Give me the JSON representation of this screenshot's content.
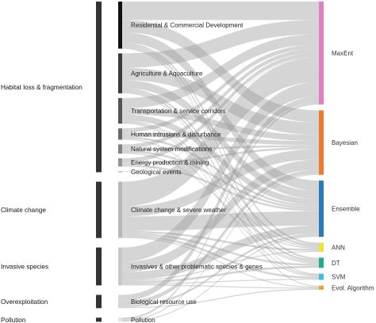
{
  "diagram": {
    "type": "sankey",
    "left_nodes": [
      {
        "key": "habitat",
        "label": "Habitat loss & fragmentation"
      },
      {
        "key": "climate",
        "label": "Climate change"
      },
      {
        "key": "invasive",
        "label": "Invasive species"
      },
      {
        "key": "overexploitation",
        "label": "Overexploitation"
      },
      {
        "key": "pollution",
        "label": "Pollution"
      }
    ],
    "middle_nodes": [
      {
        "key": "residential",
        "label": "Residential & Commercial Development",
        "parent": "habitat",
        "color": "#111111"
      },
      {
        "key": "agriculture",
        "label": "Agriculture & Aquaculture",
        "parent": "habitat",
        "color": "#3a3a3a"
      },
      {
        "key": "transportation",
        "label": "Transportation & service corridors",
        "parent": "habitat",
        "color": "#555555"
      },
      {
        "key": "human",
        "label": "Human intrusions & disturbance",
        "parent": "habitat",
        "color": "#6a6a6a"
      },
      {
        "key": "natural",
        "label": "Natural system modifications",
        "parent": "habitat",
        "color": "#808080"
      },
      {
        "key": "energy",
        "label": "Energy production & mining",
        "parent": "habitat",
        "color": "#939393"
      },
      {
        "key": "geological",
        "label": "Geological events",
        "parent": "habitat",
        "color": "#a8a8a8"
      },
      {
        "key": "climate_sw",
        "label": "Climate change & severe weather",
        "parent": "climate",
        "color": "#b8b8b8"
      },
      {
        "key": "invasives_p",
        "label": "Invasives & other problematic species & genes",
        "parent": "invasive",
        "color": "#c8c8c8"
      },
      {
        "key": "biological",
        "label": "Biological resource use",
        "parent": "overexploitation",
        "color": "#d6d6d6"
      },
      {
        "key": "pollution_m",
        "label": "Pollution",
        "parent": "pollution",
        "color": "#e4e4e4"
      }
    ],
    "right_nodes": [
      {
        "key": "maxent",
        "label": "MaxEnt",
        "color": "#e27fc2"
      },
      {
        "key": "bayesian",
        "label": "Bayesian",
        "color": "#ee7a2e"
      },
      {
        "key": "ensemble",
        "label": "Ensemble",
        "color": "#2b7bba"
      },
      {
        "key": "ann",
        "label": "ANN",
        "color": "#f2e13a"
      },
      {
        "key": "dt",
        "label": "DT",
        "color": "#23a98e"
      },
      {
        "key": "svm",
        "label": "SVM",
        "color": "#43b8e6"
      },
      {
        "key": "evol",
        "label": "Evol. Algorithm",
        "color": "#f0a040"
      }
    ],
    "flows": [
      {
        "from": "residential",
        "to": "maxent",
        "value": 9
      },
      {
        "from": "residential",
        "to": "bayesian",
        "value": 6
      },
      {
        "from": "residential",
        "to": "ensemble",
        "value": 5
      },
      {
        "from": "residential",
        "to": "ann",
        "value": 1
      },
      {
        "from": "residential",
        "to": "dt",
        "value": 1
      },
      {
        "from": "residential",
        "to": "svm",
        "value": 0.5
      },
      {
        "from": "residential",
        "to": "evol",
        "value": 0.5
      },
      {
        "from": "agriculture",
        "to": "maxent",
        "value": 7
      },
      {
        "from": "agriculture",
        "to": "bayesian",
        "value": 6
      },
      {
        "from": "agriculture",
        "to": "ensemble",
        "value": 4
      },
      {
        "from": "agriculture",
        "to": "ann",
        "value": 1
      },
      {
        "from": "agriculture",
        "to": "dt",
        "value": 1
      },
      {
        "from": "agriculture",
        "to": "svm",
        "value": 0.5
      },
      {
        "from": "transportation",
        "to": "maxent",
        "value": 5
      },
      {
        "from": "transportation",
        "to": "bayesian",
        "value": 3
      },
      {
        "from": "transportation",
        "to": "ensemble",
        "value": 3
      },
      {
        "from": "transportation",
        "to": "ann",
        "value": 0.5
      },
      {
        "from": "transportation",
        "to": "dt",
        "value": 0.5
      },
      {
        "from": "transportation",
        "to": "svm",
        "value": 0.5
      },
      {
        "from": "human",
        "to": "maxent",
        "value": 2
      },
      {
        "from": "human",
        "to": "bayesian",
        "value": 2
      },
      {
        "from": "human",
        "to": "ensemble",
        "value": 1
      },
      {
        "from": "human",
        "to": "dt",
        "value": 0.5
      },
      {
        "from": "natural",
        "to": "maxent",
        "value": 2
      },
      {
        "from": "natural",
        "to": "bayesian",
        "value": 1
      },
      {
        "from": "natural",
        "to": "ensemble",
        "value": 1
      },
      {
        "from": "natural",
        "to": "ann",
        "value": 0.5
      },
      {
        "from": "energy",
        "to": "maxent",
        "value": 2
      },
      {
        "from": "energy",
        "to": "bayesian",
        "value": 1
      },
      {
        "from": "energy",
        "to": "ensemble",
        "value": 1
      },
      {
        "from": "geological",
        "to": "maxent",
        "value": 0.3
      },
      {
        "from": "climate_sw",
        "to": "maxent",
        "value": 12
      },
      {
        "from": "climate_sw",
        "to": "bayesian",
        "value": 5
      },
      {
        "from": "climate_sw",
        "to": "ensemble",
        "value": 7
      },
      {
        "from": "climate_sw",
        "to": "ann",
        "value": 1
      },
      {
        "from": "climate_sw",
        "to": "dt",
        "value": 1
      },
      {
        "from": "climate_sw",
        "to": "svm",
        "value": 1
      },
      {
        "from": "climate_sw",
        "to": "evol",
        "value": 0.5
      },
      {
        "from": "invasives_p",
        "to": "maxent",
        "value": 7
      },
      {
        "from": "invasives_p",
        "to": "bayesian",
        "value": 5
      },
      {
        "from": "invasives_p",
        "to": "ensemble",
        "value": 4
      },
      {
        "from": "invasives_p",
        "to": "ann",
        "value": 0.5
      },
      {
        "from": "invasives_p",
        "to": "dt",
        "value": 1
      },
      {
        "from": "invasives_p",
        "to": "svm",
        "value": 0.5
      },
      {
        "from": "invasives_p",
        "to": "evol",
        "value": 0.5
      },
      {
        "from": "biological",
        "to": "maxent",
        "value": 3
      },
      {
        "from": "biological",
        "to": "bayesian",
        "value": 2
      },
      {
        "from": "biological",
        "to": "ensemble",
        "value": 1
      },
      {
        "from": "biological",
        "to": "evol",
        "value": 0.5
      },
      {
        "from": "pollution_m",
        "to": "maxent",
        "value": 1
      },
      {
        "from": "pollution_m",
        "to": "bayesian",
        "value": 0.5
      },
      {
        "from": "pollution_m",
        "to": "ensemble",
        "value": 0.5
      }
    ]
  }
}
